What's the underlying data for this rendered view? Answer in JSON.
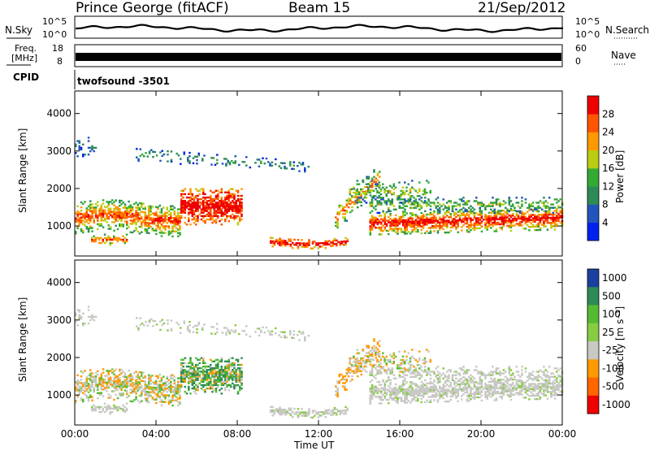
{
  "header": {
    "station": "Prince George (fitACF)",
    "beam": "Beam 15",
    "date": "21/Sep/2012"
  },
  "noise_panel": {
    "left_label": "N.Sky",
    "left_ticks": [
      "10^5",
      "10^0"
    ],
    "right_ticks": [
      "10^5",
      "10^0"
    ],
    "right_label": "N.Search"
  },
  "freq_panel": {
    "left_label_1": "Freq.",
    "left_label_2": "[MHz]",
    "left_ticks": [
      "18",
      "8"
    ],
    "right_ticks": [
      "60",
      "0"
    ],
    "right_label": "Nave"
  },
  "cpid_panel": {
    "left_label": "CPID",
    "program": "twofsound -3501"
  },
  "colors": {
    "power_scale": [
      "#0022ee",
      "#2255bb",
      "#2e8b57",
      "#33aa33",
      "#bbcc11",
      "#ff9900",
      "#ff5500",
      "#ee0000"
    ],
    "velocity_scale": [
      "#1a3f9e",
      "#2e8b57",
      "#55bb33",
      "#88cc44",
      "#c8c8c4",
      "#ff9900",
      "#ff6600",
      "#ee0000"
    ]
  },
  "chart_data": [
    {
      "type": "heatmap",
      "name": "power",
      "ylabel": "Slant Range [km]",
      "yticks": [
        1000,
        2000,
        3000,
        4000
      ],
      "ylim": [
        200,
        4600
      ],
      "colorbar_label": "Power [dB]",
      "colorbar_ticks": [
        4,
        8,
        12,
        16,
        20,
        24,
        28
      ],
      "colorbar_range": [
        0,
        32
      ]
    },
    {
      "type": "heatmap",
      "name": "velocity",
      "ylabel": "Slant Range [km]",
      "yticks": [
        1000,
        2000,
        3000,
        4000
      ],
      "ylim": [
        200,
        4600
      ],
      "colorbar_label": "Velocity [m s⁻¹]",
      "colorbar_ticks": [
        "1000",
        "500",
        "100",
        "25",
        "-25",
        "-100",
        "-500",
        "-1000"
      ]
    }
  ],
  "x_axis": {
    "ticks": [
      "00:00",
      "04:00",
      "08:00",
      "12:00",
      "16:00",
      "20:00",
      "00:00"
    ],
    "label": "Time UT",
    "range_hours": [
      0,
      24
    ]
  }
}
